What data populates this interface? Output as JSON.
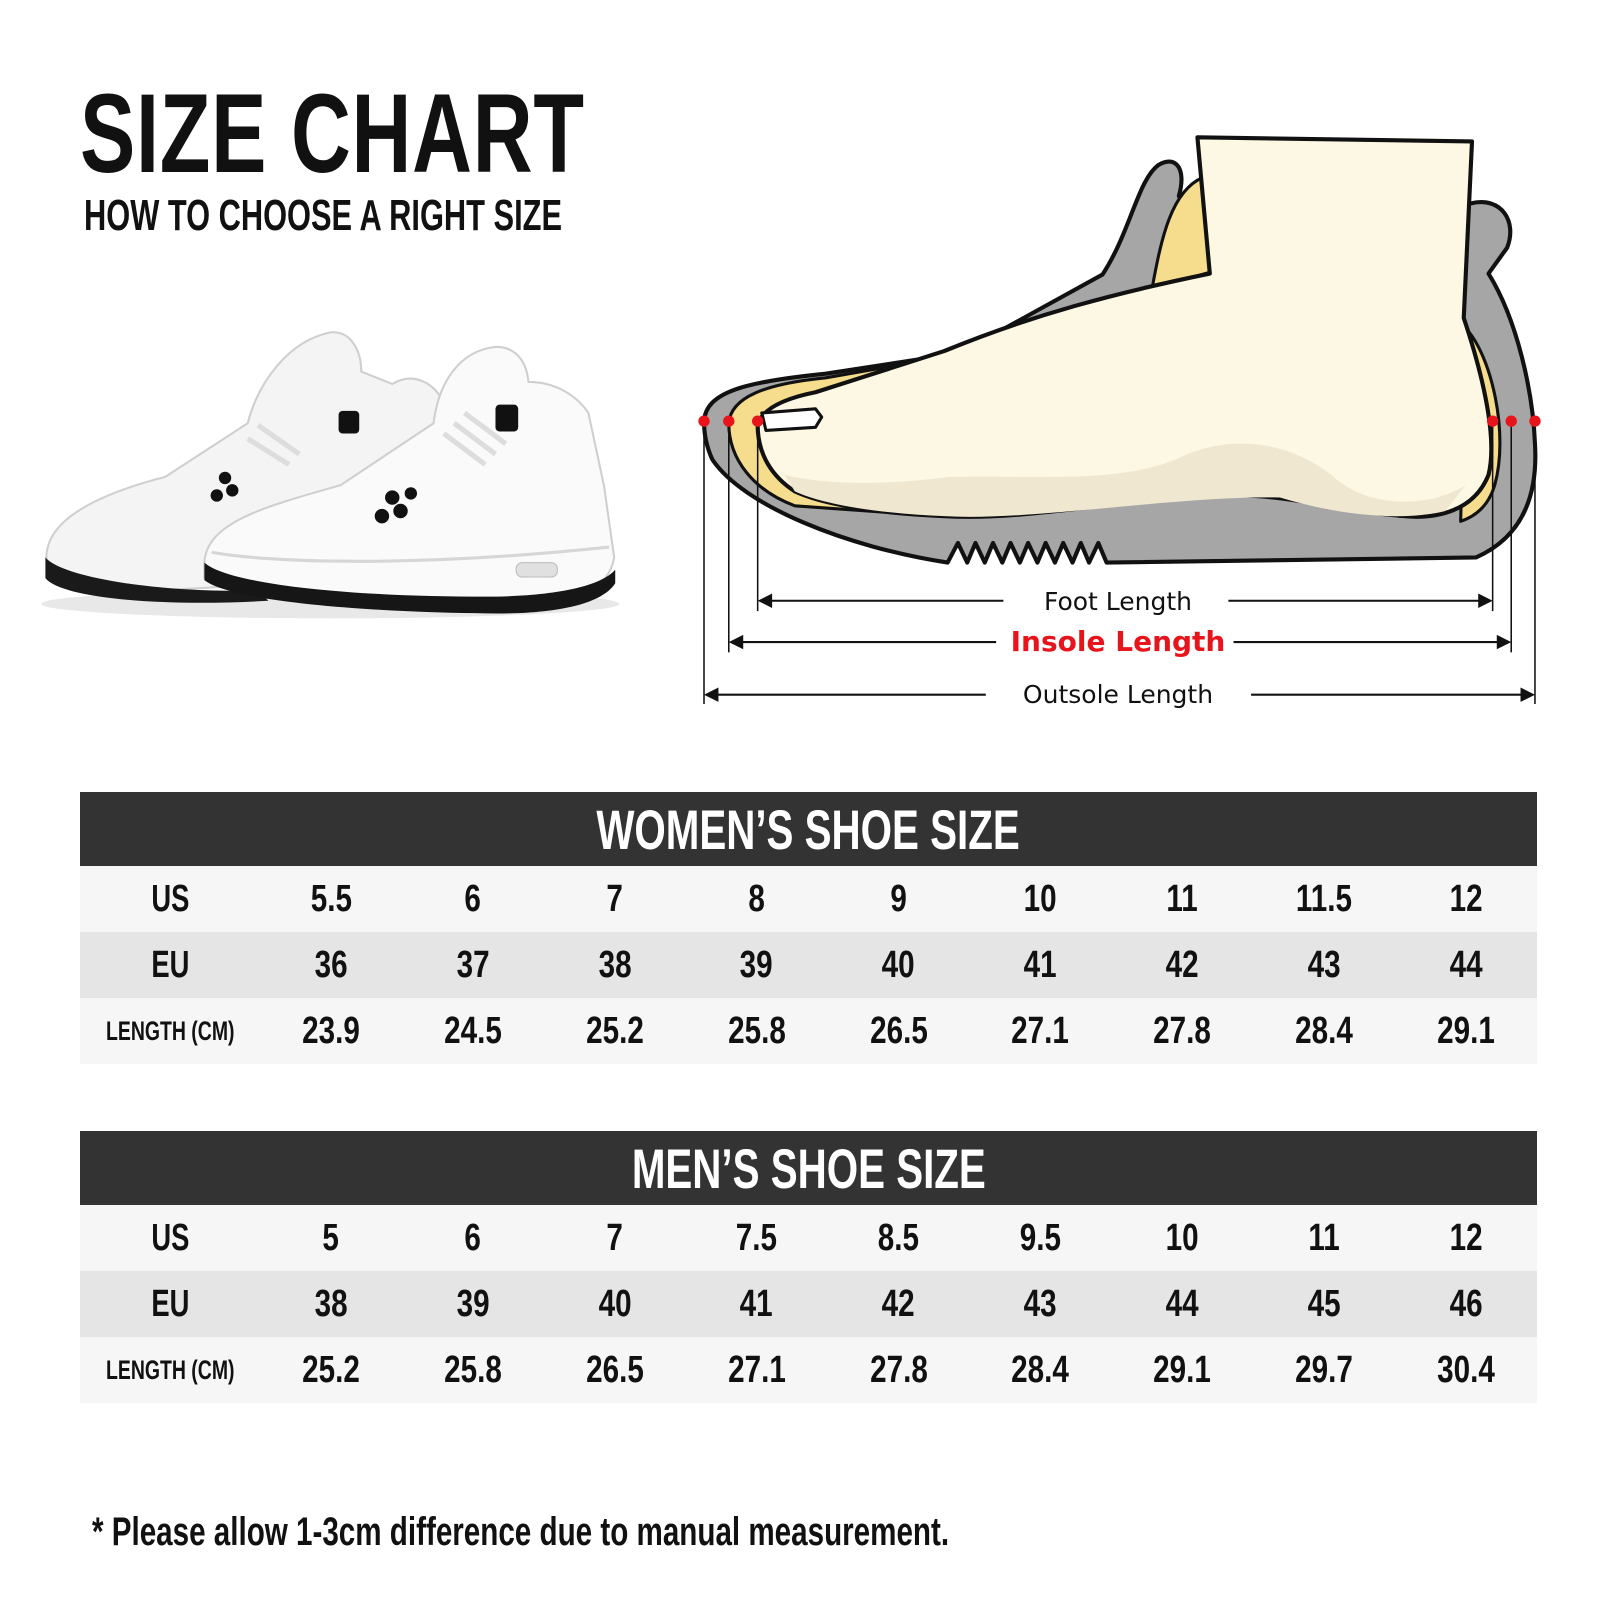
{
  "header": {
    "title": "SIZE CHART",
    "subtitle": "HOW TO CHOOSE A RIGHT SIZE"
  },
  "diagram": {
    "foot_length": "Foot Length",
    "insole_length": "Insole Length",
    "outsole_length": "Outsole Length",
    "highlight_color": "#e8141c"
  },
  "women": {
    "title": "WOMEN’S SHOE SIZE",
    "rows": [
      {
        "label": "US",
        "values": [
          "5.5",
          "6",
          "7",
          "8",
          "9",
          "10",
          "11",
          "11.5",
          "12"
        ]
      },
      {
        "label": "EU",
        "values": [
          "36",
          "37",
          "38",
          "39",
          "40",
          "41",
          "42",
          "43",
          "44"
        ]
      },
      {
        "label": "LENGTH (CM)",
        "values": [
          "23.9",
          "24.5",
          "25.2",
          "25.8",
          "26.5",
          "27.1",
          "27.8",
          "28.4",
          "29.1"
        ]
      }
    ]
  },
  "men": {
    "title": "MEN’S SHOE SIZE",
    "rows": [
      {
        "label": "US",
        "values": [
          "5",
          "6",
          "7",
          "7.5",
          "8.5",
          "9.5",
          "10",
          "11",
          "12"
        ]
      },
      {
        "label": "EU",
        "values": [
          "38",
          "39",
          "40",
          "41",
          "42",
          "43",
          "44",
          "45",
          "46"
        ]
      },
      {
        "label": "LENGTH (CM)",
        "values": [
          "25.2",
          "25.8",
          "26.5",
          "27.1",
          "27.8",
          "28.4",
          "29.1",
          "29.7",
          "30.4"
        ]
      }
    ]
  },
  "footnote": "* Please allow 1-3cm difference due to manual measurement."
}
